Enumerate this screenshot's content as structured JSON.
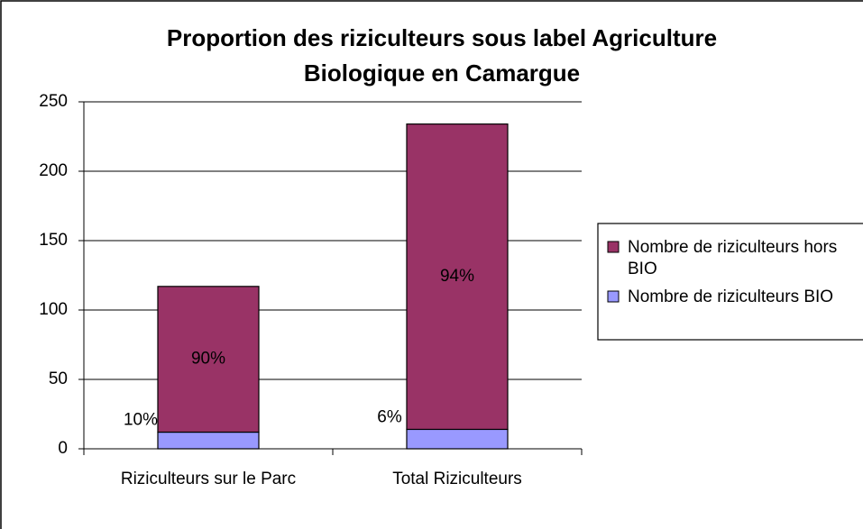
{
  "chart_data": {
    "type": "stacked_bar",
    "title": [
      "Proportion des riziculteurs sous label Agriculture",
      "Biologique en Camargue"
    ],
    "categories": [
      "Riziculteurs sur le Parc",
      "Total Riziculteurs"
    ],
    "series": [
      {
        "name": "Nombre de riziculteurs BIO",
        "color": "#9999ff",
        "values": [
          12,
          14
        ],
        "share_labels": [
          "10%",
          "6%"
        ]
      },
      {
        "name": "Nombre de riziculteurs hors BIO",
        "color": "#993366",
        "values": [
          105,
          220
        ],
        "share_labels": [
          "90%",
          "94%"
        ]
      }
    ],
    "ylim": [
      0,
      250
    ],
    "yticks": [
      0,
      50,
      100,
      150,
      200,
      250
    ],
    "grid": true,
    "legend": "right"
  }
}
